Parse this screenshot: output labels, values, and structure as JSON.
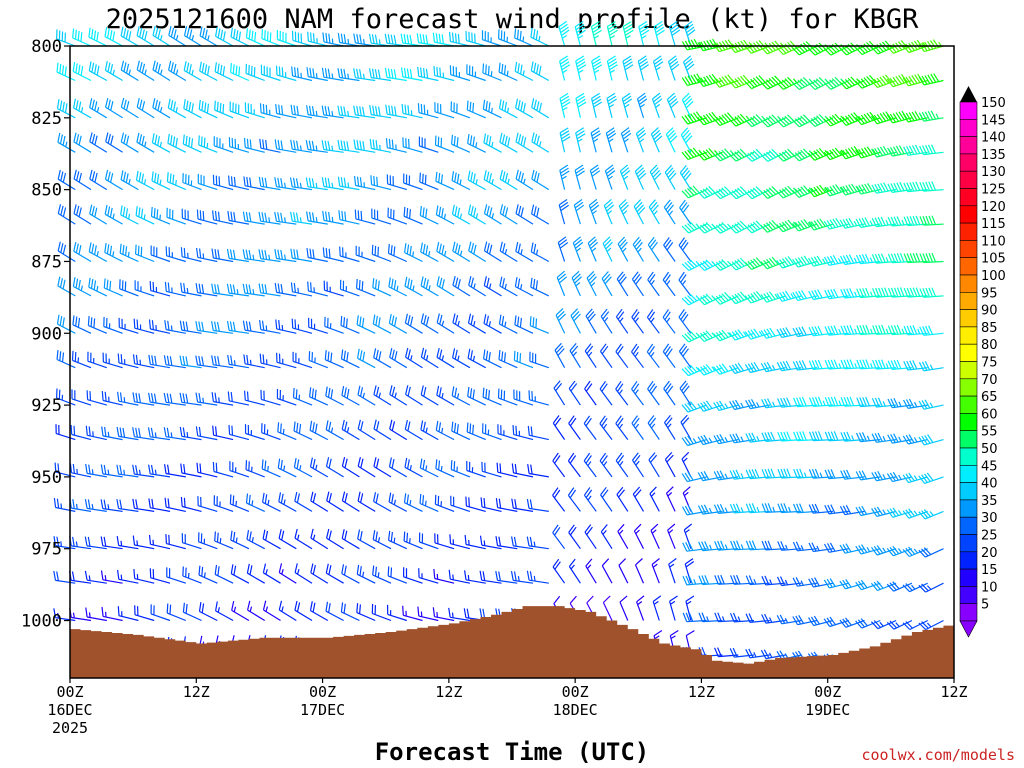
{
  "chart_data": {
    "type": "wind-barb time-height profile",
    "title": "2025121600 NAM forecast wind profile (kt) for KBGR",
    "xlabel": "Forecast Time (UTC)",
    "ylabel": "",
    "credit": "coolwx.com/models",
    "x_units": "forecast hours from 2025-12-16 00Z",
    "xlim": [
      0,
      84
    ],
    "ylim_hPa": [
      800,
      1020
    ],
    "y_ticks": [
      {
        "value": 800,
        "label": "800"
      },
      {
        "value": 825,
        "label": "825"
      },
      {
        "value": 850,
        "label": "850"
      },
      {
        "value": 875,
        "label": "875"
      },
      {
        "value": 900,
        "label": "900"
      },
      {
        "value": 925,
        "label": "925"
      },
      {
        "value": 950,
        "label": "950"
      },
      {
        "value": 975,
        "label": "975"
      },
      {
        "value": 1000,
        "label": "1000"
      }
    ],
    "x_ticks": [
      {
        "hour": 0,
        "time": "00Z",
        "date": "16DEC",
        "year": "2025"
      },
      {
        "hour": 12,
        "time": "12Z",
        "date": "",
        "year": ""
      },
      {
        "hour": 24,
        "time": "00Z",
        "date": "17DEC",
        "year": ""
      },
      {
        "hour": 36,
        "time": "12Z",
        "date": "",
        "year": ""
      },
      {
        "hour": 48,
        "time": "00Z",
        "date": "18DEC",
        "year": ""
      },
      {
        "hour": 60,
        "time": "12Z",
        "date": "",
        "year": ""
      },
      {
        "hour": 72,
        "time": "00Z",
        "date": "19DEC",
        "year": ""
      },
      {
        "hour": 84,
        "time": "12Z",
        "date": "",
        "year": ""
      }
    ],
    "colorbar": {
      "units": "kt",
      "labels": [
        "150",
        "145",
        "140",
        "135",
        "130",
        "125",
        "120",
        "115",
        "110",
        "105",
        "100",
        "95",
        "90",
        "85",
        "80",
        "75",
        "70",
        "65",
        "60",
        "55",
        "50",
        "45",
        "40",
        "35",
        "30",
        "25",
        "20",
        "15",
        "10",
        "5"
      ],
      "colors": [
        "#ff00ff",
        "#ff00cc",
        "#ff0099",
        "#ff0066",
        "#ff0044",
        "#ff0022",
        "#ff0000",
        "#ff2200",
        "#ff4400",
        "#ff6600",
        "#ff8800",
        "#ffaa00",
        "#ffcc00",
        "#ffee00",
        "#ffff00",
        "#ccff00",
        "#88ff00",
        "#44ff00",
        "#00ff00",
        "#00ff66",
        "#00ffcc",
        "#00eeff",
        "#00ccff",
        "#0099ff",
        "#0066ff",
        "#0044ff",
        "#0022ff",
        "#2200ff",
        "#4400ff",
        "#8800ff"
      ],
      "extend": "both"
    },
    "surface_pressure_hPa": [
      {
        "hour": 0,
        "p": 1003
      },
      {
        "hour": 6,
        "p": 1005
      },
      {
        "hour": 12,
        "p": 1008
      },
      {
        "hour": 18,
        "p": 1006
      },
      {
        "hour": 24,
        "p": 1006
      },
      {
        "hour": 30,
        "p": 1004
      },
      {
        "hour": 36,
        "p": 1001
      },
      {
        "hour": 40,
        "p": 998
      },
      {
        "hour": 43,
        "p": 995
      },
      {
        "hour": 46,
        "p": 995
      },
      {
        "hour": 49,
        "p": 997
      },
      {
        "hour": 53,
        "p": 1003
      },
      {
        "hour": 56,
        "p": 1008
      },
      {
        "hour": 59,
        "p": 1010
      },
      {
        "hour": 61,
        "p": 1014
      },
      {
        "hour": 64,
        "p": 1015
      },
      {
        "hour": 67,
        "p": 1013
      },
      {
        "hour": 72,
        "p": 1012
      },
      {
        "hour": 76,
        "p": 1009
      },
      {
        "hour": 80,
        "p": 1004
      },
      {
        "hour": 84,
        "p": 1001
      }
    ],
    "barb_levels_hPa": [
      800,
      812,
      825,
      837,
      850,
      862,
      875,
      887,
      900,
      912,
      925,
      937,
      950,
      962,
      975,
      987,
      1000,
      1012
    ],
    "barb_hour_step": 1.5,
    "wind_regimes": [
      {
        "hour_start": 0,
        "hour_end": 46,
        "direction_deg": 290,
        "speed_kt_top": 40,
        "speed_kt_bottom": 18
      },
      {
        "hour_start": 46,
        "hour_end": 60,
        "direction_deg": 335,
        "speed_kt_top": 45,
        "speed_kt_bottom": 12
      },
      {
        "hour_start": 60,
        "hour_end": 84,
        "direction_deg": 255,
        "speed_kt_top": 62,
        "speed_kt_bottom": 25
      }
    ]
  }
}
